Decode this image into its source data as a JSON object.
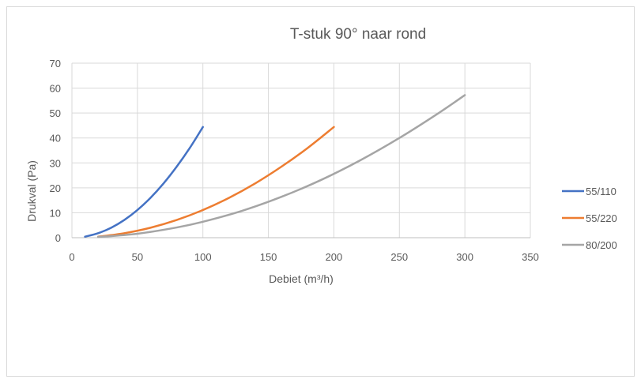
{
  "chart_data": {
    "type": "line",
    "title": "T-stuk 90° naar rond",
    "xlabel": "Debiet (m³/h)",
    "ylabel": "Drukval (Pa)",
    "xlim": [
      0,
      350
    ],
    "ylim": [
      0,
      70
    ],
    "xticks": [
      "0",
      "50",
      "100",
      "150",
      "200",
      "250",
      "300",
      "350"
    ],
    "yticks": [
      "0",
      "10",
      "20",
      "30",
      "40",
      "50",
      "60",
      "70"
    ],
    "grid": true,
    "legend_position": "right",
    "series": [
      {
        "name": "55/110",
        "color": "#4472c4",
        "points": [
          [
            10,
            0.4
          ],
          [
            20,
            1.8
          ],
          [
            30,
            4.0
          ],
          [
            40,
            7.1
          ],
          [
            50,
            11.1
          ],
          [
            60,
            16.0
          ],
          [
            70,
            21.8
          ],
          [
            80,
            28.5
          ],
          [
            90,
            36.0
          ],
          [
            100,
            44.4
          ]
        ]
      },
      {
        "name": "55/220",
        "color": "#ed7d31",
        "points": [
          [
            20,
            0.4
          ],
          [
            40,
            1.8
          ],
          [
            60,
            4.0
          ],
          [
            80,
            7.1
          ],
          [
            100,
            11.1
          ],
          [
            120,
            16.0
          ],
          [
            140,
            21.8
          ],
          [
            160,
            28.5
          ],
          [
            180,
            36.0
          ],
          [
            200,
            44.4
          ]
        ]
      },
      {
        "name": "80/200",
        "color": "#a5a5a5",
        "points": [
          [
            20,
            0.3
          ],
          [
            50,
            1.6
          ],
          [
            80,
            4.1
          ],
          [
            100,
            6.4
          ],
          [
            130,
            10.8
          ],
          [
            160,
            16.4
          ],
          [
            190,
            23.1
          ],
          [
            220,
            31.0
          ],
          [
            250,
            40.0
          ],
          [
            280,
            50.0
          ],
          [
            300,
            57.2
          ]
        ]
      }
    ]
  }
}
